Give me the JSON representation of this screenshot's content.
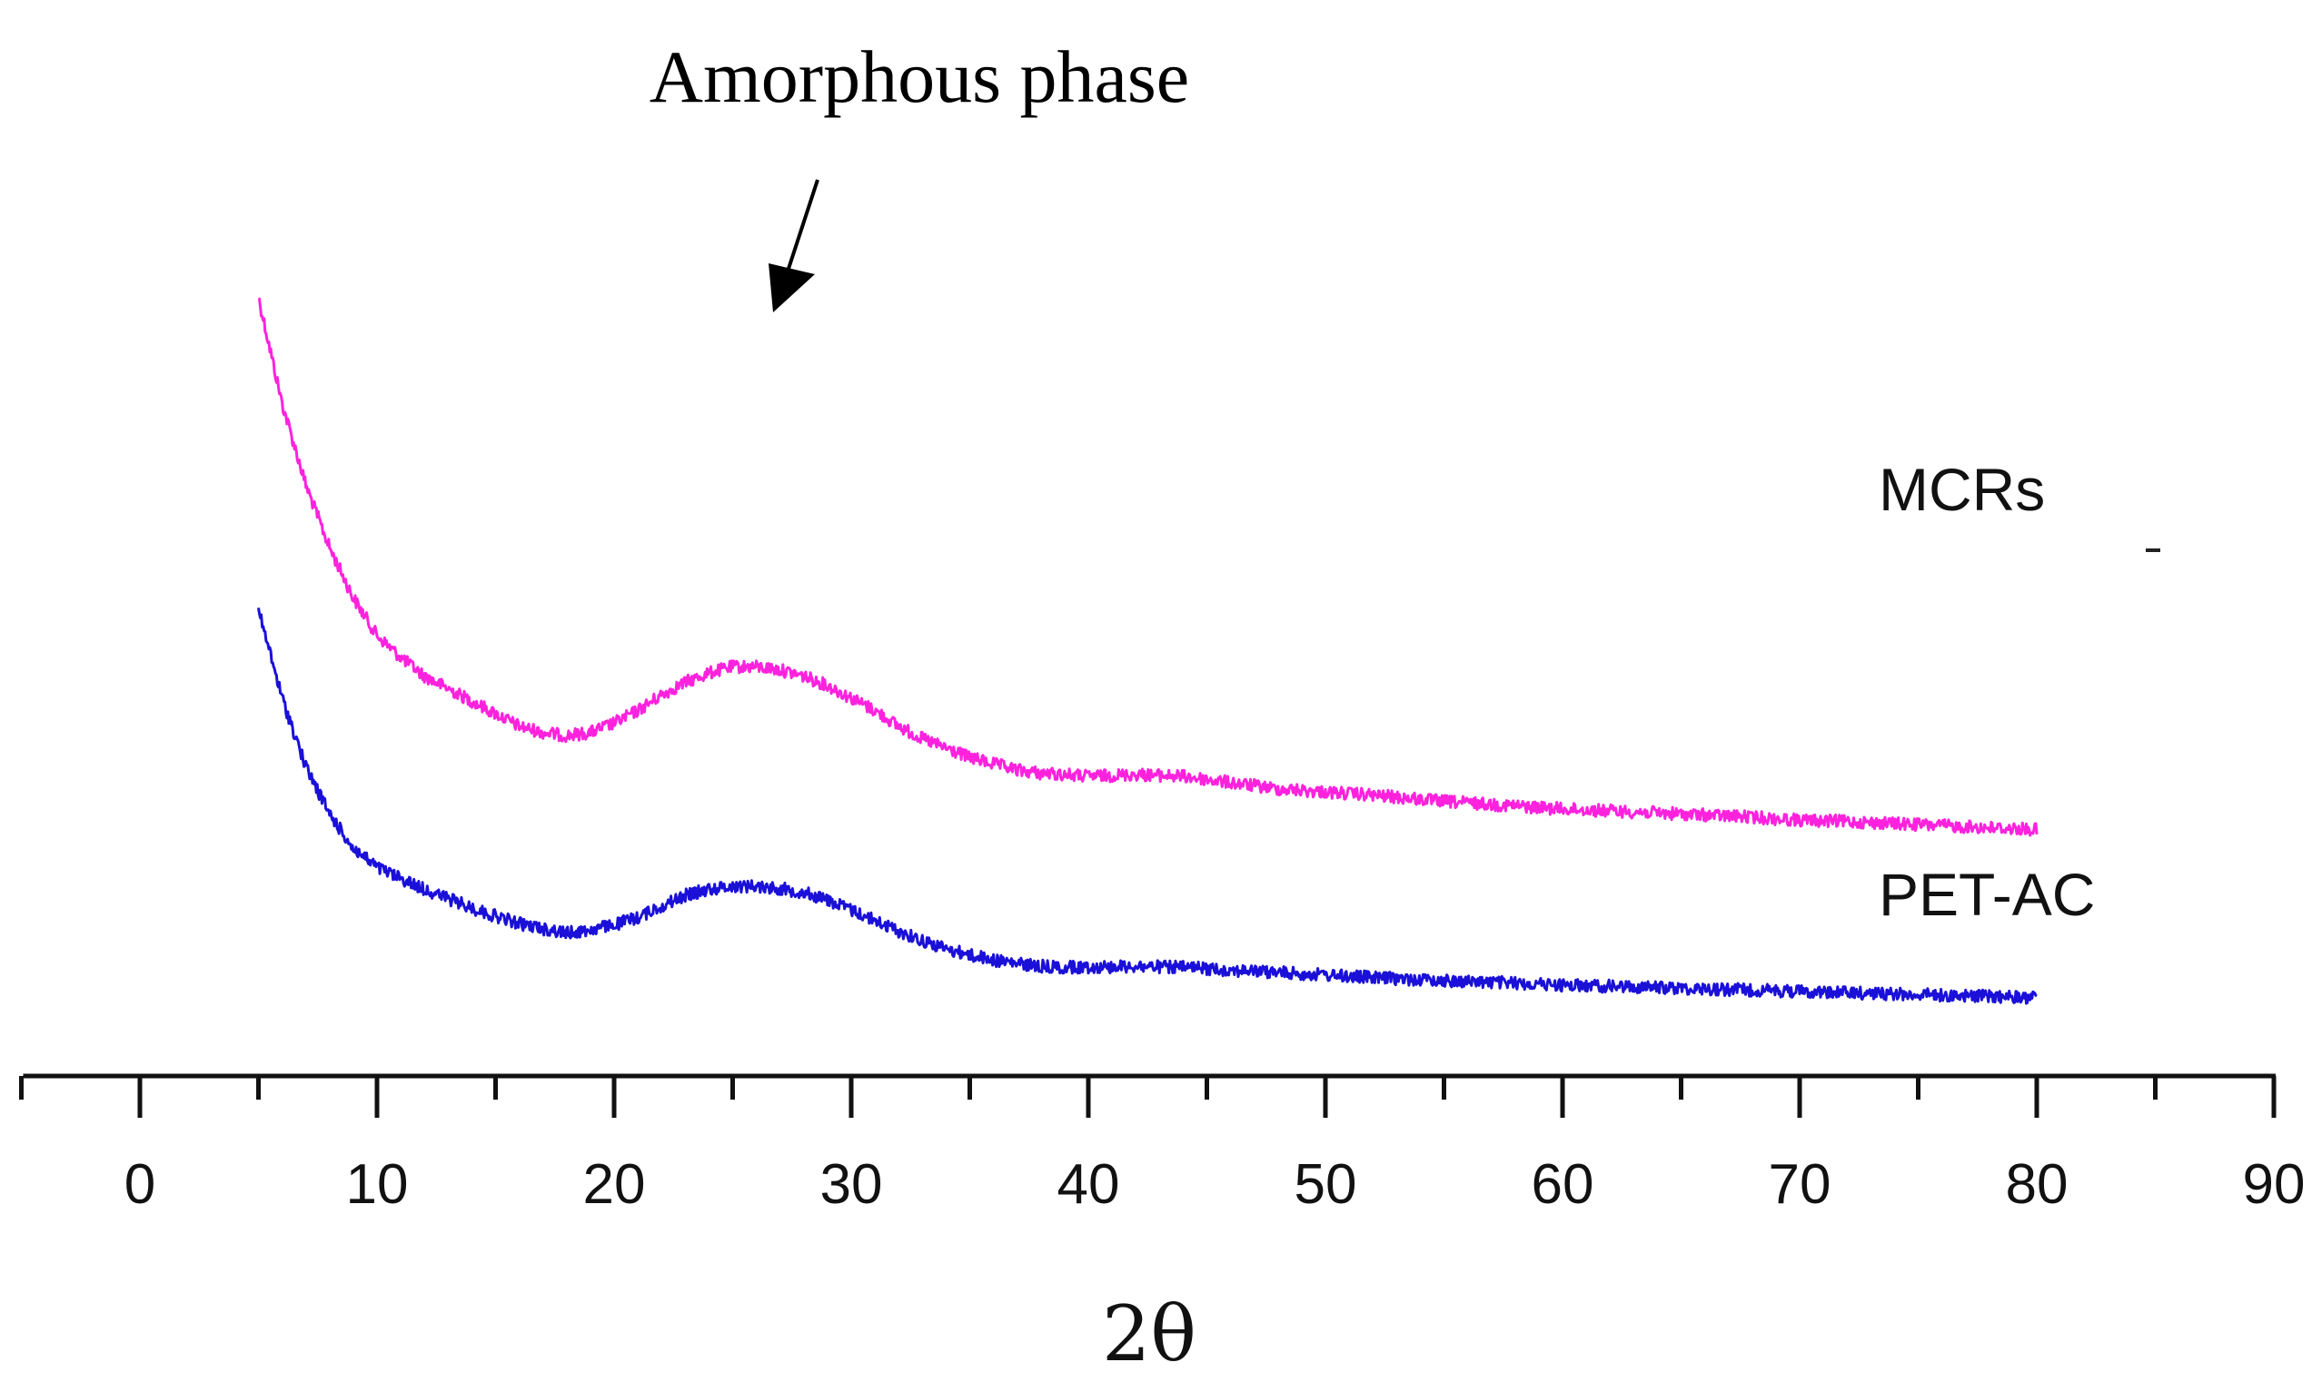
{
  "chart_data": {
    "type": "line",
    "title": "",
    "xlabel": "2θ",
    "ylabel": "",
    "xlim": [
      -5,
      90
    ],
    "x_ticks": [
      0,
      10,
      20,
      30,
      40,
      50,
      60,
      70,
      80,
      90
    ],
    "x_tick_labels": [
      "0",
      "10",
      "20",
      "30",
      "40",
      "50",
      "60",
      "70",
      "80",
      "90"
    ],
    "y_axis_shown": false,
    "grid": false,
    "legend": "labels placed at right end of each curve",
    "annotation": {
      "text": "Amorphous phase",
      "points_to_x": 26
    },
    "series": [
      {
        "name": "MCRs",
        "color": "#ff22dd",
        "x": [
          5,
          6,
          7,
          8,
          9,
          10,
          11,
          12,
          13,
          14,
          15,
          16,
          17,
          18,
          19,
          20,
          21,
          22,
          23,
          24,
          25,
          26,
          27,
          28,
          29,
          30,
          31,
          32,
          33,
          34,
          35,
          36,
          37,
          38,
          39,
          40,
          42,
          44,
          46,
          48,
          50,
          52,
          55,
          58,
          60,
          62,
          65,
          68,
          70,
          72,
          75,
          78,
          80
        ],
        "values": [
          112,
          95,
          82,
          72,
          64,
          58,
          54.5,
          51.5,
          49.5,
          47.5,
          45.5,
          43.5,
          42.5,
          42,
          42.5,
          44,
          46,
          48.5,
          50.5,
          52,
          53,
          53,
          52.5,
          51.5,
          50,
          48,
          46,
          43.5,
          41.5,
          40,
          38.5,
          37.5,
          36.5,
          36,
          35.8,
          35.5,
          35.8,
          35.5,
          34.5,
          33.5,
          33,
          32.5,
          31.5,
          30.8,
          30.3,
          30,
          29.5,
          29,
          28.5,
          28.3,
          27.8,
          27.3,
          27
        ]
      },
      {
        "name": "PET-AC",
        "color": "#1a10d8",
        "x": [
          5,
          6,
          7,
          8,
          9,
          10,
          11,
          12,
          13,
          14,
          15,
          16,
          17,
          18,
          19,
          20,
          21,
          22,
          23,
          24,
          25,
          26,
          27,
          28,
          29,
          30,
          31,
          32,
          33,
          34,
          35,
          36,
          37,
          38,
          39,
          40,
          42,
          44,
          46,
          48,
          50,
          52,
          55,
          58,
          60,
          62,
          65,
          68,
          70,
          72,
          75,
          78,
          80
        ],
        "values": [
          62,
          48,
          37,
          29.5,
          24,
          21,
          19.2,
          17.5,
          16,
          14.5,
          13.2,
          12,
          11.2,
          10.5,
          11,
          11.8,
          13,
          14.8,
          16.5,
          17.5,
          18,
          18,
          17.6,
          17,
          15.8,
          14.2,
          12.5,
          10.8,
          9.3,
          8,
          7,
          6.2,
          5.6,
          5.2,
          5,
          5.1,
          5.2,
          5,
          4.6,
          4.2,
          3.8,
          3.4,
          2.9,
          2.5,
          2.2,
          2,
          1.7,
          1.4,
          1.2,
          1,
          0.7,
          0.4,
          0.2
        ]
      }
    ]
  }
}
